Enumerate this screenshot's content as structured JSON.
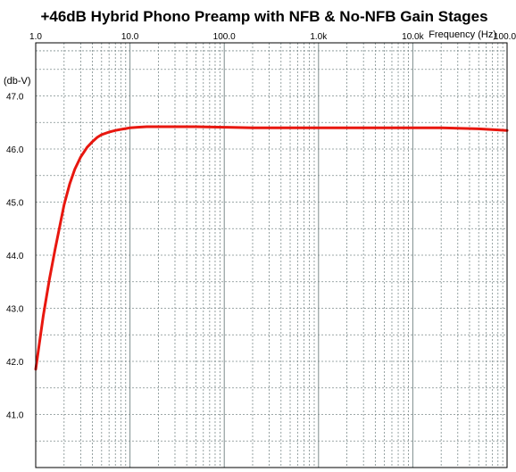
{
  "chart_data": {
    "type": "line",
    "title": "+46dB Hybrid Phono Preamp with NFB & No-NFB Gain Stages",
    "xlabel": "Frequency  (Hz)",
    "ylabel": "(db-V)",
    "x_scale": "log",
    "xlim": [
      1.0,
      100000.0
    ],
    "ylim": [
      40.0,
      48.0
    ],
    "x_ticks": [
      {
        "value": 1,
        "label": "1.0"
      },
      {
        "value": 10,
        "label": "10.0"
      },
      {
        "value": 100,
        "label": "100.0"
      },
      {
        "value": 1000,
        "label": "1.0k"
      },
      {
        "value": 10000,
        "label": "10.0k"
      },
      {
        "value": 100000,
        "label": "100.0k"
      }
    ],
    "y_ticks": [
      {
        "value": 41,
        "label": "41.0"
      },
      {
        "value": 42,
        "label": "42.0"
      },
      {
        "value": 43,
        "label": "43.0"
      },
      {
        "value": 44,
        "label": "44.0"
      },
      {
        "value": 45,
        "label": "45.0"
      },
      {
        "value": 46,
        "label": "46.0"
      },
      {
        "value": 47,
        "label": "47.0"
      }
    ],
    "grid": true,
    "series_color": "#e8170f",
    "grid_color": "#7d8c8c",
    "series": [
      {
        "x": [
          1.0,
          1.2,
          1.4,
          1.6,
          1.8,
          2.0,
          2.3,
          2.6,
          3.0,
          3.5,
          4.0,
          4.5,
          5.0,
          6.0,
          7.0,
          8.0,
          9.0,
          10.0,
          12.0,
          15.0,
          20.0,
          30.0,
          50.0,
          100.0,
          200.0,
          500.0,
          1000.0,
          2000.0,
          5000.0,
          10000.0,
          20000.0,
          30000.0,
          50000.0,
          80000.0,
          100000.0
        ],
        "y": [
          41.85,
          42.85,
          43.55,
          44.1,
          44.55,
          44.95,
          45.35,
          45.62,
          45.85,
          46.03,
          46.14,
          46.22,
          46.27,
          46.32,
          46.35,
          46.37,
          46.385,
          46.4,
          46.41,
          46.42,
          46.42,
          46.42,
          46.42,
          46.41,
          46.4,
          46.4,
          46.4,
          46.4,
          46.4,
          46.4,
          46.4,
          46.39,
          46.38,
          46.36,
          46.35
        ]
      }
    ]
  }
}
